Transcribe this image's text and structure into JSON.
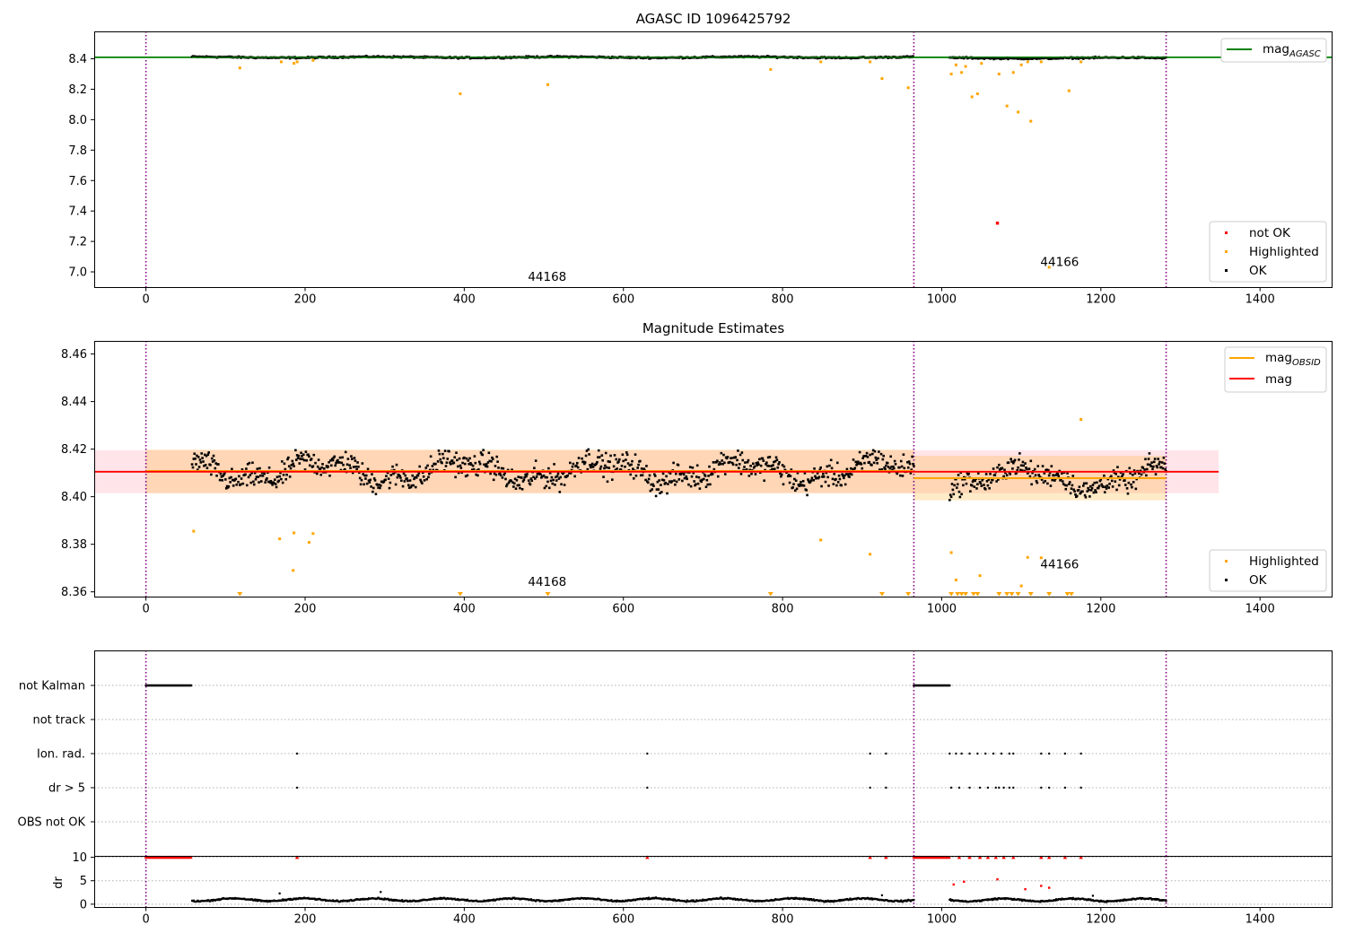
{
  "chart_data": [
    {
      "id": "mag-agasc",
      "type": "scatter",
      "title": "AGASC ID 1096425792",
      "xlim": [
        -65,
        1490
      ],
      "ylim": [
        6.9,
        8.58
      ],
      "xticks": [
        0,
        200,
        400,
        600,
        800,
        1000,
        1200,
        1400
      ],
      "yticks": [
        7.0,
        7.2,
        7.4,
        7.6,
        7.8,
        8.0,
        8.2,
        8.4
      ],
      "ytick_decimals": 1,
      "vlines": [
        0,
        965,
        1282
      ],
      "hline": {
        "y": 8.41,
        "color": "#008000"
      },
      "obs_labels": [
        {
          "x": 480,
          "y": 6.94,
          "text": "44168"
        },
        {
          "x": 1124,
          "y": 7.04,
          "text": "44166"
        }
      ],
      "legend_lines": [
        {
          "label": "mag",
          "sub": "AGASC",
          "color": "#008000"
        }
      ],
      "legend_points": [
        {
          "label": "not OK",
          "color": "#ff0000"
        },
        {
          "label": "Highlighted",
          "color": "#ffa500"
        },
        {
          "label": "OK",
          "color": "#000000"
        }
      ],
      "segments": [
        {
          "x0": 58,
          "x1": 965,
          "center": 8.41,
          "amp": 0.012,
          "step": 1.5
        },
        {
          "x0": 1010,
          "x1": 1282,
          "center": 8.405,
          "amp": 0.012,
          "step": 1.5
        }
      ],
      "highlighted": [
        [
          118,
          8.34
        ],
        [
          170,
          8.38
        ],
        [
          186,
          8.37
        ],
        [
          190,
          8.38
        ],
        [
          210,
          8.39
        ],
        [
          395,
          8.17
        ],
        [
          505,
          8.23
        ],
        [
          785,
          8.33
        ],
        [
          848,
          8.38
        ],
        [
          910,
          8.38
        ],
        [
          925,
          8.27
        ],
        [
          958,
          8.21
        ],
        [
          1012,
          8.3
        ],
        [
          1018,
          8.36
        ],
        [
          1025,
          8.31
        ],
        [
          1030,
          8.35
        ],
        [
          1038,
          8.15
        ],
        [
          1045,
          8.17
        ],
        [
          1050,
          8.37
        ],
        [
          1072,
          8.3
        ],
        [
          1082,
          8.09
        ],
        [
          1090,
          8.31
        ],
        [
          1096,
          8.05
        ],
        [
          1100,
          8.36
        ],
        [
          1108,
          8.38
        ],
        [
          1112,
          7.99
        ],
        [
          1125,
          8.38
        ],
        [
          1135,
          7.03
        ],
        [
          1160,
          8.19
        ],
        [
          1175,
          8.38
        ]
      ],
      "not_ok": [
        [
          1070,
          7.32
        ]
      ]
    },
    {
      "id": "mag-estimates",
      "type": "scatter",
      "title": "Magnitude Estimates",
      "xlim": [
        -65,
        1490
      ],
      "ylim": [
        8.358,
        8.4655
      ],
      "xticks": [
        0,
        200,
        400,
        600,
        800,
        1000,
        1200,
        1400
      ],
      "yticks": [
        8.36,
        8.38,
        8.4,
        8.42,
        8.44,
        8.46
      ],
      "ytick_decimals": 2,
      "vlines": [
        0,
        965,
        1282
      ],
      "overall": {
        "mean": 8.4105,
        "lo": 8.4015,
        "hi": 8.4195,
        "x0": -65,
        "x1": 1348,
        "color": "#ff0000",
        "band": "rgba(255,105,135,0.18)"
      },
      "obsid_stats": [
        {
          "x0": 0,
          "x1": 965,
          "mean": 8.4108,
          "lo": 8.4015,
          "hi": 8.4198
        },
        {
          "x0": 965,
          "x1": 1282,
          "mean": 8.4078,
          "lo": 8.3985,
          "hi": 8.4172
        }
      ],
      "obs_labels": [
        {
          "x": 480,
          "y": 8.3625,
          "text": "44168"
        },
        {
          "x": 1124,
          "y": 8.3698,
          "text": "44166"
        }
      ],
      "legend_lines": [
        {
          "label": "mag",
          "sub": "OBSID",
          "color": "#ffa500"
        },
        {
          "label": "mag",
          "sub": "",
          "color": "#ff0000"
        }
      ],
      "legend_points": [
        {
          "label": "Highlighted",
          "color": "#ffa500"
        },
        {
          "label": "OK",
          "color": "#000000"
        }
      ],
      "segments": [
        {
          "x0": 58,
          "x1": 965,
          "center": 8.4108,
          "amp": 0.0135,
          "step": 1.0
        },
        {
          "x0": 1010,
          "x1": 1282,
          "center": 8.4078,
          "amp": 0.0125,
          "step": 1.0
        }
      ],
      "highlighted": [
        [
          60,
          8.3855
        ],
        [
          168,
          8.3823
        ],
        [
          185,
          8.369
        ],
        [
          186,
          8.3848
        ],
        [
          205,
          8.3808
        ],
        [
          210,
          8.3845
        ],
        [
          848,
          8.3818
        ],
        [
          910,
          8.3758
        ],
        [
          1012,
          8.3765
        ],
        [
          1018,
          8.365
        ],
        [
          1048,
          8.3668
        ],
        [
          1100,
          8.3625
        ],
        [
          1108,
          8.3745
        ],
        [
          1125,
          8.3743
        ],
        [
          1175,
          8.4325
        ]
      ],
      "clipped": [
        118,
        395,
        505,
        785,
        925,
        958,
        1012,
        1020,
        1025,
        1030,
        1040,
        1045,
        1072,
        1082,
        1088,
        1096,
        1112,
        1135,
        1158,
        1163
      ]
    },
    {
      "id": "flags",
      "type": "scatter",
      "xlim": [
        -65,
        1490
      ],
      "categories": [
        "not Kalman",
        "not track",
        "Ion. rad.",
        "dr > 5",
        "OBS not OK"
      ],
      "vlines": [
        0,
        965,
        1282
      ],
      "flags": {
        "not Kalman": {
          "ranges": [
            [
              0,
              57
            ],
            [
              965,
              1010
            ]
          ]
        },
        "not track": {
          "ranges": []
        },
        "Ion. rad.": {
          "points": [
            190,
            630,
            910,
            930,
            1010,
            1018,
            1025,
            1035,
            1045,
            1055,
            1065,
            1075,
            1085,
            1090,
            1125,
            1135,
            1155,
            1175
          ]
        },
        "dr > 5": {
          "points": [
            190,
            630,
            910,
            930,
            1012,
            1022,
            1035,
            1048,
            1058,
            1068,
            1072,
            1078,
            1085,
            1090,
            1125,
            1135,
            1155,
            1175
          ]
        },
        "OBS not OK": {
          "ranges": []
        }
      }
    },
    {
      "id": "dr",
      "type": "scatter",
      "ylabel": "dr",
      "xlim": [
        -65,
        1490
      ],
      "ylim": [
        -0.6,
        10.3
      ],
      "xticks": [
        0,
        200,
        400,
        600,
        800,
        1000,
        1200,
        1400
      ],
      "yticks": [
        0,
        5,
        10
      ],
      "ytick_decimals": 0,
      "vlines": [
        0,
        965,
        1282
      ],
      "clip_value": 10,
      "clipped_ranges": [
        [
          0,
          57
        ],
        [
          965,
          1010
        ]
      ],
      "clipped_points": [
        190,
        630,
        910,
        930,
        1022,
        1035,
        1048,
        1058,
        1068,
        1078,
        1090,
        1125,
        1135,
        1155,
        1175
      ],
      "segments": [
        {
          "x0": 58,
          "x1": 965,
          "center": 0.95,
          "amp": 0.45
        },
        {
          "x0": 1010,
          "x1": 1282,
          "center": 0.9,
          "amp": 0.45
        }
      ],
      "red_points": [
        [
          1015,
          4.2
        ],
        [
          1028,
          4.8
        ],
        [
          1070,
          5.3
        ],
        [
          1105,
          3.2
        ],
        [
          1125,
          3.9
        ],
        [
          1135,
          3.5
        ]
      ],
      "extra_points": [
        [
          168,
          2.3
        ],
        [
          295,
          2.6
        ],
        [
          925,
          1.9
        ],
        [
          1190,
          1.8
        ]
      ]
    }
  ]
}
